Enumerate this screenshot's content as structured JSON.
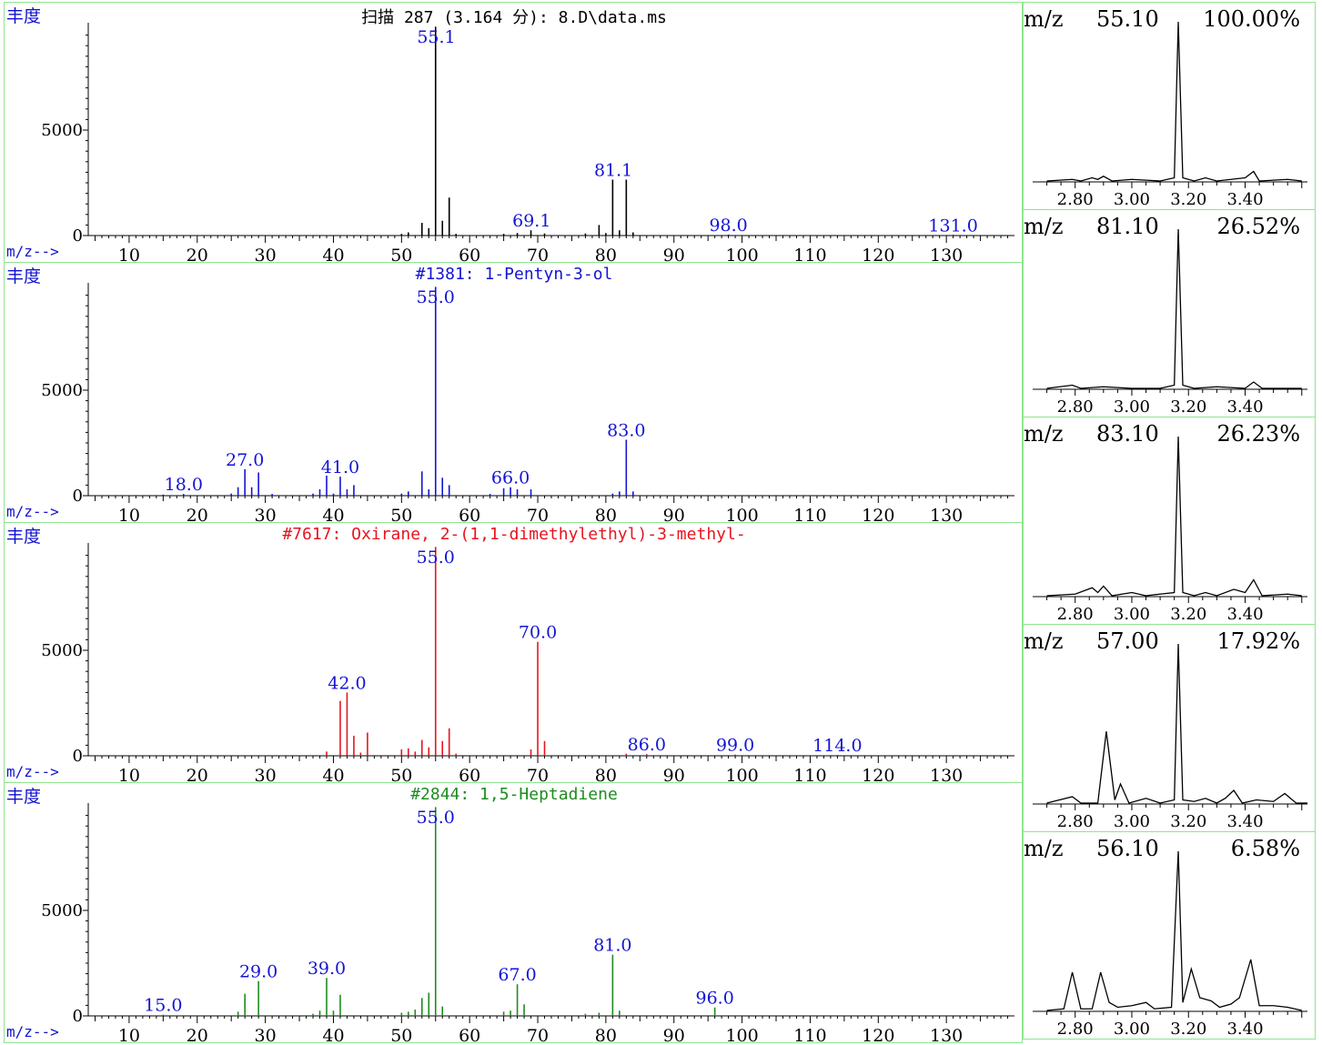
{
  "ms_panels": [
    {
      "title": "扫描 287 (3.164 分): 8.D\\data.ms",
      "title_color": "#000000",
      "bar_color": "#000000",
      "ylabel": "丰度",
      "xlabel": "m/z-->",
      "peaks": [
        [
          50,
          80
        ],
        [
          51,
          150
        ],
        [
          53,
          600
        ],
        [
          54,
          350
        ],
        [
          55,
          9900
        ],
        [
          56,
          700
        ],
        [
          57,
          1800
        ],
        [
          58,
          80
        ],
        [
          65,
          80
        ],
        [
          67,
          120
        ],
        [
          69,
          250
        ],
        [
          71,
          100
        ],
        [
          77,
          100
        ],
        [
          79,
          500
        ],
        [
          80,
          120
        ],
        [
          81,
          2650
        ],
        [
          82,
          250
        ],
        [
          83,
          2650
        ],
        [
          84,
          150
        ],
        [
          98,
          40
        ],
        [
          131,
          30
        ]
      ],
      "labels": [
        {
          "text": "55.1",
          "x": 55.1,
          "y": 9900
        },
        {
          "text": "69.1",
          "x": 69.1,
          "y": 250
        },
        {
          "text": "81.1",
          "x": 81.1,
          "y": 2650
        },
        {
          "text": "98.0",
          "x": 98.0,
          "y": 40
        },
        {
          "text": "131.0",
          "x": 131.0,
          "y": 30
        }
      ]
    },
    {
      "title": "#1381: 1-Pentyn-3-ol",
      "title_color": "#1414d4",
      "bar_color": "#1414d4",
      "ylabel": "丰度",
      "xlabel": "m/z-->",
      "peaks": [
        [
          15,
          50
        ],
        [
          18,
          80
        ],
        [
          25,
          100
        ],
        [
          26,
          400
        ],
        [
          27,
          1250
        ],
        [
          28,
          400
        ],
        [
          29,
          1100
        ],
        [
          31,
          80
        ],
        [
          37,
          100
        ],
        [
          38,
          300
        ],
        [
          39,
          950
        ],
        [
          40,
          100
        ],
        [
          41,
          900
        ],
        [
          42,
          300
        ],
        [
          43,
          500
        ],
        [
          50,
          100
        ],
        [
          51,
          200
        ],
        [
          53,
          1150
        ],
        [
          54,
          300
        ],
        [
          55,
          9900
        ],
        [
          56,
          850
        ],
        [
          57,
          500
        ],
        [
          63,
          80
        ],
        [
          65,
          350
        ],
        [
          66,
          400
        ],
        [
          67,
          300
        ],
        [
          69,
          300
        ],
        [
          81,
          100
        ],
        [
          82,
          200
        ],
        [
          83,
          2650
        ],
        [
          84,
          200
        ]
      ],
      "labels": [
        {
          "text": "18.0",
          "x": 18.0,
          "y": 80
        },
        {
          "text": "27.0",
          "x": 27.0,
          "y": 1250
        },
        {
          "text": "41.0",
          "x": 41.0,
          "y": 900
        },
        {
          "text": "55.0",
          "x": 55.0,
          "y": 9900
        },
        {
          "text": "66.0",
          "x": 66.0,
          "y": 400
        },
        {
          "text": "83.0",
          "x": 83.0,
          "y": 2650
        }
      ]
    },
    {
      "title": "#7617: Oxirane, 2-(1,1-dimethylethyl)-3-methyl-",
      "title_color": "#e8141e",
      "bar_color": "#e8141e",
      "ylabel": "丰度",
      "xlabel": "m/z-->",
      "peaks": [
        [
          39,
          200
        ],
        [
          41,
          2600
        ],
        [
          42,
          3000
        ],
        [
          43,
          950
        ],
        [
          44,
          150
        ],
        [
          45,
          1100
        ],
        [
          50,
          300
        ],
        [
          51,
          350
        ],
        [
          52,
          200
        ],
        [
          53,
          750
        ],
        [
          54,
          400
        ],
        [
          55,
          9900
        ],
        [
          56,
          700
        ],
        [
          57,
          1300
        ],
        [
          58,
          100
        ],
        [
          69,
          300
        ],
        [
          70,
          5400
        ],
        [
          71,
          700
        ],
        [
          83,
          100
        ],
        [
          86,
          80
        ],
        [
          99,
          60
        ],
        [
          114,
          40
        ]
      ],
      "labels": [
        {
          "text": "42.0",
          "x": 42.0,
          "y": 3000
        },
        {
          "text": "55.0",
          "x": 55.0,
          "y": 9900
        },
        {
          "text": "70.0",
          "x": 70.0,
          "y": 5400
        },
        {
          "text": "86.0",
          "x": 86.0,
          "y": 80
        },
        {
          "text": "99.0",
          "x": 99.0,
          "y": 60
        },
        {
          "text": "114.0",
          "x": 114.0,
          "y": 40
        }
      ]
    },
    {
      "title": "#2844: 1,5-Heptadiene",
      "title_color": "#1e8c1e",
      "bar_color": "#1e8c1e",
      "ylabel": "丰度",
      "xlabel": "m/z-->",
      "peaks": [
        [
          15,
          60
        ],
        [
          26,
          200
        ],
        [
          27,
          1050
        ],
        [
          29,
          1650
        ],
        [
          37,
          100
        ],
        [
          38,
          250
        ],
        [
          39,
          1800
        ],
        [
          40,
          250
        ],
        [
          41,
          1000
        ],
        [
          50,
          150
        ],
        [
          51,
          200
        ],
        [
          52,
          300
        ],
        [
          53,
          850
        ],
        [
          54,
          1100
        ],
        [
          55,
          9900
        ],
        [
          56,
          450
        ],
        [
          65,
          200
        ],
        [
          66,
          250
        ],
        [
          67,
          1500
        ],
        [
          68,
          550
        ],
        [
          77,
          100
        ],
        [
          79,
          150
        ],
        [
          81,
          2900
        ],
        [
          82,
          250
        ],
        [
          96,
          400
        ]
      ],
      "labels": [
        {
          "text": "15.0",
          "x": 15.0,
          "y": 60
        },
        {
          "text": "29.0",
          "x": 29.0,
          "y": 1650
        },
        {
          "text": "39.0",
          "x": 39.0,
          "y": 1800
        },
        {
          "text": "55.0",
          "x": 55.0,
          "y": 9900
        },
        {
          "text": "67.0",
          "x": 67.0,
          "y": 1500
        },
        {
          "text": "81.0",
          "x": 81.0,
          "y": 2900
        },
        {
          "text": "96.0",
          "x": 96.0,
          "y": 400
        }
      ]
    }
  ],
  "ms_axis": {
    "xlim": [
      4,
      140
    ],
    "ylim": [
      0,
      10000
    ],
    "xticks": [
      10,
      20,
      30,
      40,
      50,
      60,
      70,
      80,
      90,
      100,
      110,
      120,
      130
    ],
    "yticks": [
      0,
      5000
    ],
    "label_color": "#1414d4"
  },
  "eic_panels": [
    {
      "mz_label": "m/z",
      "mz": "55.10",
      "pct": "100.00%",
      "trace": [
        [
          2.7,
          0.0
        ],
        [
          2.79,
          0.01
        ],
        [
          2.82,
          0.0
        ],
        [
          2.86,
          0.02
        ],
        [
          2.88,
          0.01
        ],
        [
          2.9,
          0.03
        ],
        [
          2.93,
          0.0
        ],
        [
          3.0,
          0.01
        ],
        [
          3.1,
          0.0
        ],
        [
          3.15,
          0.02
        ],
        [
          3.164,
          1.0
        ],
        [
          3.18,
          0.02
        ],
        [
          3.22,
          0.0
        ],
        [
          3.26,
          0.02
        ],
        [
          3.3,
          0.0
        ],
        [
          3.4,
          0.02
        ],
        [
          3.43,
          0.06
        ],
        [
          3.45,
          0.0
        ],
        [
          3.55,
          0.01
        ],
        [
          3.6,
          0.0
        ]
      ]
    },
    {
      "mz_label": "m/z",
      "mz": "81.10",
      "pct": "26.52%",
      "trace": [
        [
          2.7,
          0.0
        ],
        [
          2.79,
          0.02
        ],
        [
          2.82,
          0.0
        ],
        [
          2.9,
          0.01
        ],
        [
          3.0,
          0.0
        ],
        [
          3.1,
          0.0
        ],
        [
          3.15,
          0.02
        ],
        [
          3.164,
          1.0
        ],
        [
          3.18,
          0.02
        ],
        [
          3.22,
          0.0
        ],
        [
          3.3,
          0.01
        ],
        [
          3.4,
          0.0
        ],
        [
          3.43,
          0.04
        ],
        [
          3.46,
          0.0
        ],
        [
          3.6,
          0.0
        ]
      ]
    },
    {
      "mz_label": "m/z",
      "mz": "83.10",
      "pct": "26.23%",
      "trace": [
        [
          2.7,
          0.0
        ],
        [
          2.8,
          0.01
        ],
        [
          2.86,
          0.05
        ],
        [
          2.88,
          0.02
        ],
        [
          2.9,
          0.06
        ],
        [
          2.93,
          0.0
        ],
        [
          3.0,
          0.02
        ],
        [
          3.05,
          0.0
        ],
        [
          3.1,
          0.01
        ],
        [
          3.15,
          0.02
        ],
        [
          3.164,
          1.0
        ],
        [
          3.18,
          0.02
        ],
        [
          3.22,
          0.0
        ],
        [
          3.26,
          0.02
        ],
        [
          3.3,
          0.0
        ],
        [
          3.36,
          0.04
        ],
        [
          3.4,
          0.02
        ],
        [
          3.43,
          0.1
        ],
        [
          3.46,
          0.0
        ],
        [
          3.55,
          0.01
        ],
        [
          3.6,
          0.0
        ]
      ]
    },
    {
      "mz_label": "m/z",
      "mz": "57.00",
      "pct": "17.92%",
      "trace": [
        [
          2.7,
          0.0
        ],
        [
          2.79,
          0.04
        ],
        [
          2.82,
          0.0
        ],
        [
          2.88,
          0.0
        ],
        [
          2.91,
          0.45
        ],
        [
          2.94,
          0.02
        ],
        [
          2.96,
          0.12
        ],
        [
          2.99,
          0.0
        ],
        [
          3.05,
          0.03
        ],
        [
          3.1,
          0.0
        ],
        [
          3.15,
          0.02
        ],
        [
          3.164,
          1.0
        ],
        [
          3.18,
          0.02
        ],
        [
          3.22,
          0.01
        ],
        [
          3.26,
          0.03
        ],
        [
          3.3,
          0.0
        ],
        [
          3.33,
          0.03
        ],
        [
          3.36,
          0.08
        ],
        [
          3.39,
          0.0
        ],
        [
          3.44,
          0.02
        ],
        [
          3.5,
          0.01
        ],
        [
          3.54,
          0.06
        ],
        [
          3.58,
          0.0
        ],
        [
          3.62,
          0.0
        ]
      ]
    },
    {
      "mz_label": "m/z",
      "mz": "56.10",
      "pct": "6.58%",
      "trace": [
        [
          2.7,
          0.0
        ],
        [
          2.76,
          0.01
        ],
        [
          2.79,
          0.24
        ],
        [
          2.82,
          0.01
        ],
        [
          2.86,
          0.01
        ],
        [
          2.89,
          0.24
        ],
        [
          2.92,
          0.05
        ],
        [
          2.95,
          0.02
        ],
        [
          3.0,
          0.03
        ],
        [
          3.05,
          0.05
        ],
        [
          3.08,
          0.01
        ],
        [
          3.14,
          0.02
        ],
        [
          3.164,
          1.0
        ],
        [
          3.18,
          0.05
        ],
        [
          3.21,
          0.26
        ],
        [
          3.24,
          0.08
        ],
        [
          3.28,
          0.06
        ],
        [
          3.31,
          0.02
        ],
        [
          3.35,
          0.04
        ],
        [
          3.38,
          0.08
        ],
        [
          3.42,
          0.32
        ],
        [
          3.45,
          0.03
        ],
        [
          3.5,
          0.03
        ],
        [
          3.55,
          0.02
        ],
        [
          3.6,
          0.0
        ]
      ]
    }
  ],
  "eic_axis": {
    "xlim": [
      2.65,
      3.62
    ],
    "xticks": [
      "2.80",
      "3.00",
      "3.20",
      "3.40"
    ]
  }
}
